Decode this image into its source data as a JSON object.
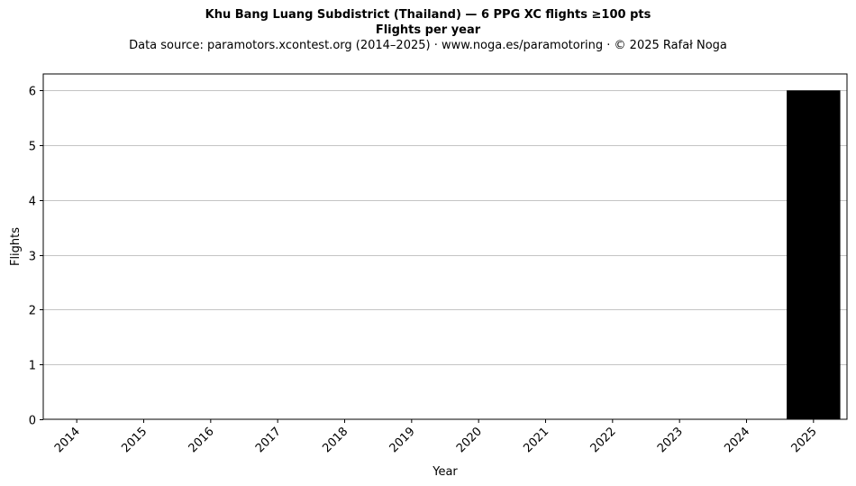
{
  "chart_data": {
    "type": "bar",
    "title": "Khu Bang Luang Subdistrict (Thailand)  —  6 PPG XC flights ≥100 pts",
    "subtitle": "Flights per year",
    "source_note": "Data source: paramotors.xcontest.org (2014–2025)  ·  www.noga.es/paramotoring  ·  © 2025 Rafał Noga",
    "xlabel": "Year",
    "ylabel": "Flights",
    "categories": [
      "2014",
      "2015",
      "2016",
      "2017",
      "2018",
      "2019",
      "2020",
      "2021",
      "2022",
      "2023",
      "2024",
      "2025"
    ],
    "values": [
      0,
      0,
      0,
      0,
      0,
      0,
      0,
      0,
      0,
      0,
      0,
      6
    ],
    "ylim": [
      0,
      6.3
    ],
    "yticks": [
      0,
      1,
      2,
      3,
      4,
      5,
      6
    ],
    "grid": "y",
    "bar_color": "#000000",
    "grid_color": "#b0b0b0"
  }
}
